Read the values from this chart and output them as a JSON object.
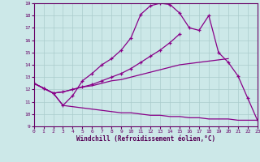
{
  "xlabel": "Windchill (Refroidissement éolien,°C)",
  "background_color": "#cce8e8",
  "grid_color": "#aacccc",
  "line_color": "#880088",
  "xmin": 0,
  "xmax": 23,
  "ymin": 9,
  "ymax": 19,
  "line1_x": [
    0,
    1,
    2,
    3,
    4,
    5,
    6,
    7,
    8,
    9,
    10,
    11,
    12,
    13,
    14,
    15,
    16,
    17,
    18,
    19,
    20,
    21,
    22,
    23
  ],
  "line1_y": [
    12.5,
    12.1,
    11.7,
    10.7,
    10.6,
    10.5,
    10.4,
    10.3,
    10.2,
    10.1,
    10.1,
    10.0,
    9.9,
    9.9,
    9.8,
    9.8,
    9.7,
    9.7,
    9.6,
    9.6,
    9.6,
    9.5,
    9.5,
    9.5
  ],
  "line2_x": [
    0,
    1,
    2,
    3,
    4,
    5,
    6,
    7,
    8,
    9,
    10,
    11,
    12,
    13,
    14,
    15,
    16,
    17,
    18,
    19,
    20
  ],
  "line2_y": [
    12.5,
    12.1,
    11.7,
    11.8,
    12.0,
    12.2,
    12.3,
    12.5,
    12.7,
    12.8,
    13.0,
    13.2,
    13.4,
    13.6,
    13.8,
    14.0,
    14.1,
    14.2,
    14.3,
    14.4,
    14.5
  ],
  "line3_x": [
    0,
    1,
    2,
    3,
    4,
    5,
    6,
    7,
    8,
    9,
    10,
    11,
    12,
    13,
    14,
    15,
    16,
    17,
    18,
    19,
    20,
    21
  ],
  "line3_y": [
    12.5,
    12.1,
    11.7,
    11.8,
    12.0,
    12.2,
    12.4,
    12.7,
    13.0,
    13.3,
    13.7,
    14.2,
    14.7,
    15.2,
    15.8,
    16.5,
    null,
    null,
    null,
    null,
    null,
    null
  ],
  "line4_x": [
    0,
    1,
    2,
    3,
    4,
    5,
    6,
    7,
    8,
    9,
    10,
    11,
    12,
    13,
    14,
    15,
    16,
    17,
    18,
    19,
    20,
    21,
    22,
    23
  ],
  "line4_y": [
    12.5,
    12.1,
    11.7,
    10.7,
    11.5,
    12.7,
    13.3,
    14.0,
    14.5,
    15.2,
    16.2,
    18.1,
    18.8,
    19.0,
    18.9,
    18.2,
    17.0,
    16.8,
    18.0,
    15.0,
    14.2,
    13.1,
    11.3,
    9.5
  ]
}
